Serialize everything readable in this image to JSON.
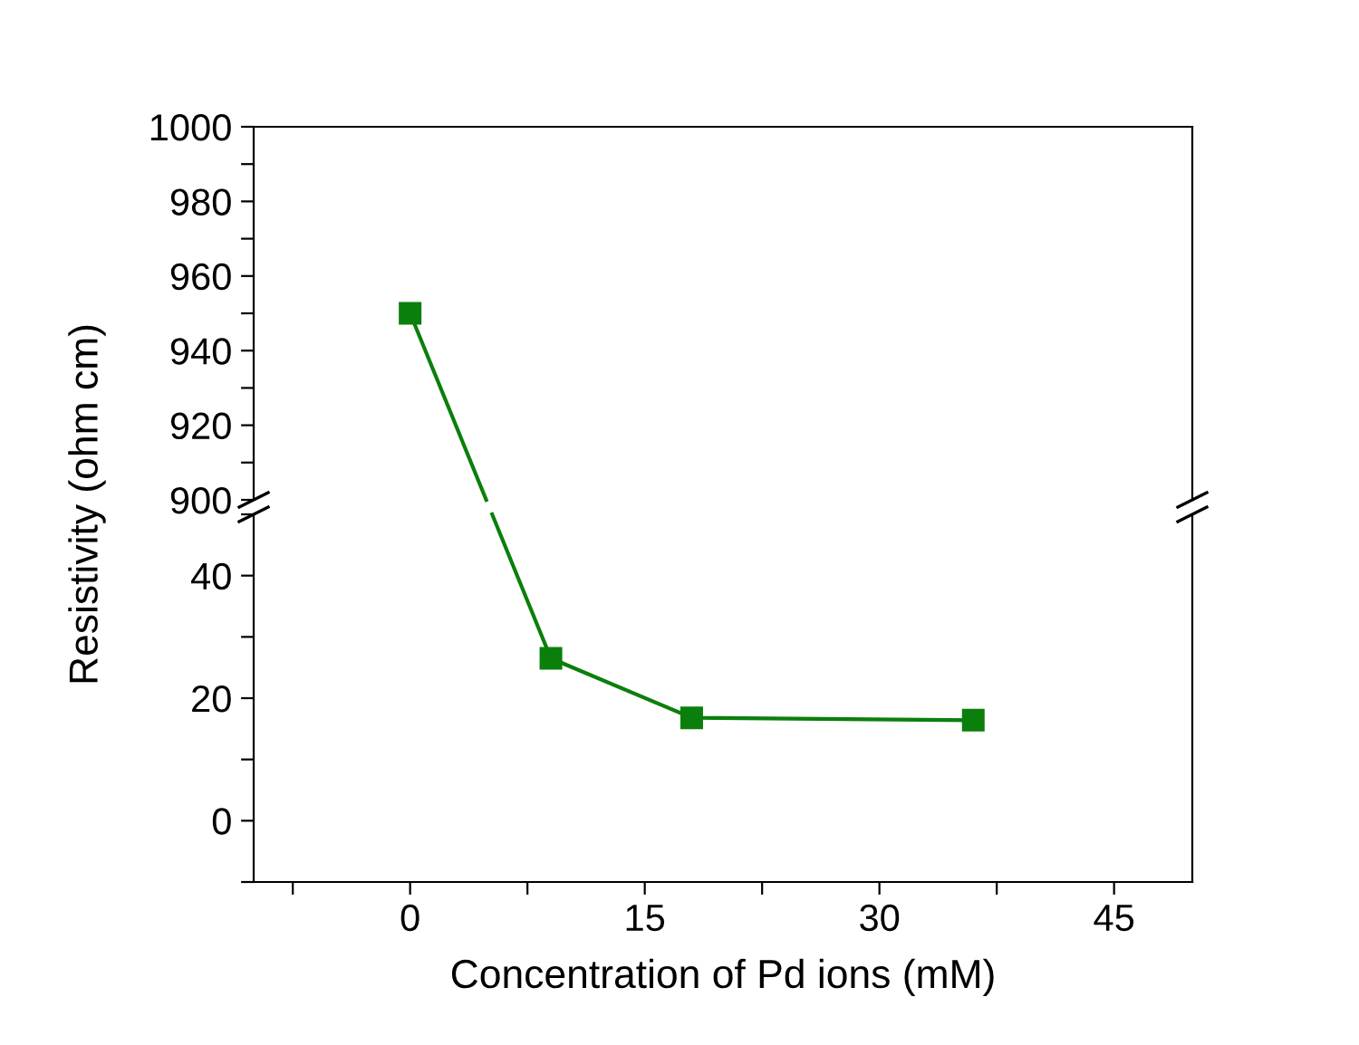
{
  "chart_data": [
    {
      "type": "line",
      "ylabel": "Resistivity (ohm cm)",
      "xlim": [
        -10,
        50
      ],
      "ylim": [
        900,
        1000
      ],
      "yticks": [
        900,
        {
          "value": 910,
          "label": null
        },
        920,
        {
          "value": 930,
          "label": null
        },
        940,
        {
          "value": 950,
          "label": null
        },
        960,
        {
          "value": 970,
          "label": null
        },
        980,
        {
          "value": 990,
          "label": null
        },
        1000
      ],
      "tick_labels": "y",
      "marker": "square",
      "grid": false,
      "series": [
        {
          "color": "#0b7f0b",
          "x": [
            0
          ],
          "values": [
            950
          ]
        }
      ]
    },
    {
      "type": "line",
      "xlabel": "Concentration of Pd ions (mM)",
      "xlim": [
        -10,
        50
      ],
      "ylim": [
        -10,
        50
      ],
      "xticks": [
        {
          "value": -7.5,
          "label": null
        },
        0,
        {
          "value": 7.5,
          "label": null
        },
        15,
        {
          "value": 22.5,
          "label": null
        },
        30,
        {
          "value": 37.5,
          "label": null
        },
        45
      ],
      "yticks": [
        {
          "value": -10,
          "label": null
        },
        0,
        {
          "value": 10,
          "label": null
        },
        20,
        {
          "value": 30,
          "label": null
        },
        40,
        {
          "value": 50,
          "label": null
        }
      ],
      "marker": "square",
      "grid": false,
      "series": [
        {
          "color": "#0b7f0b",
          "x": [
            9,
            18,
            36
          ],
          "values": [
            26.5,
            16.8,
            16.4
          ]
        }
      ]
    }
  ]
}
